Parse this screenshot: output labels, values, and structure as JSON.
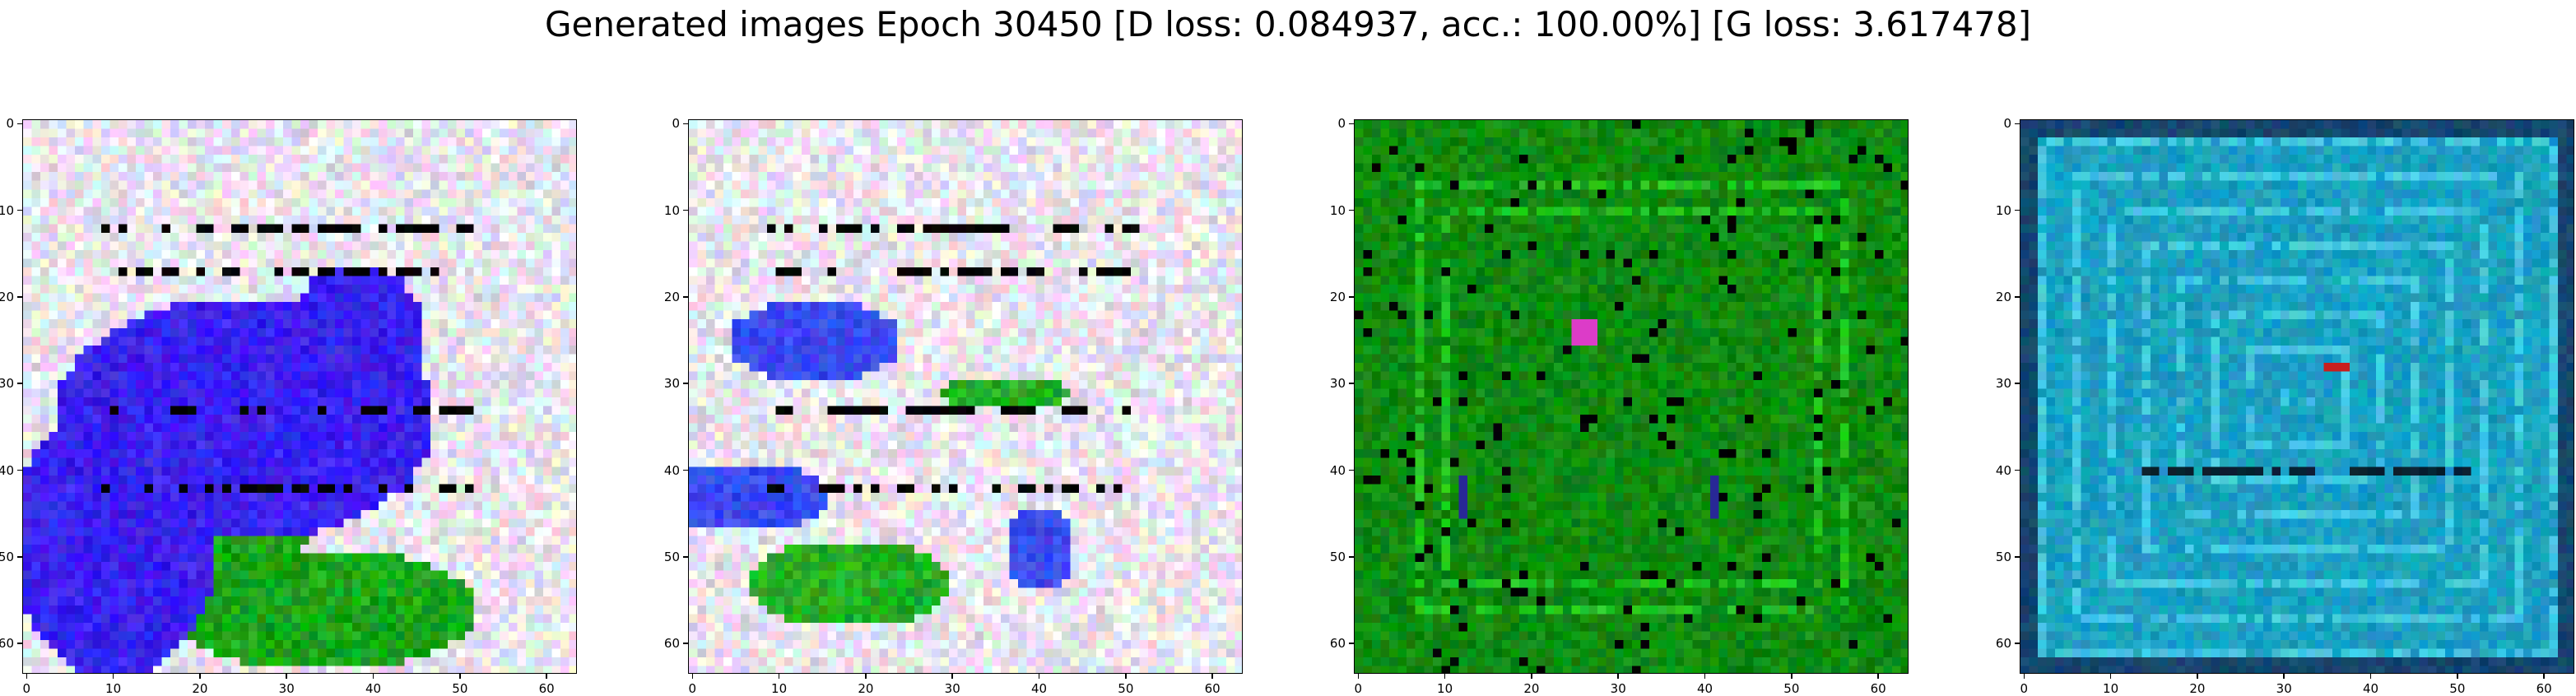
{
  "figure": {
    "title": "Generated images Epoch 30450 [D loss: 0.084937, acc.: 100.00%] [G loss: 3.617478]"
  },
  "chart_data": [
    {
      "type": "heatmap",
      "description_colors": [
        "#e8e4ee",
        "#3a22ee",
        "#1aa61a",
        "#000000"
      ],
      "x": [
        0,
        10,
        20,
        30,
        40,
        50,
        60
      ],
      "y": [
        0,
        10,
        20,
        30,
        40,
        50,
        60
      ],
      "xlim": [
        -0.5,
        63.5
      ],
      "ylim": [
        63.5,
        -0.5
      ],
      "x_tick_labels": [
        "0",
        "10",
        "20",
        "30",
        "40",
        "50",
        "60"
      ],
      "y_tick_labels": [
        "0",
        "10",
        "20",
        "30",
        "40",
        "50",
        "60"
      ],
      "grid": false
    },
    {
      "type": "heatmap",
      "description_colors": [
        "#e8e4ee",
        "#3a4af0",
        "#25b025",
        "#000000"
      ],
      "x": [
        0,
        10,
        20,
        30,
        40,
        50,
        60
      ],
      "y": [
        0,
        10,
        20,
        30,
        40,
        50,
        60
      ],
      "xlim": [
        -0.5,
        63.5
      ],
      "ylim": [
        63.5,
        -0.5
      ],
      "x_tick_labels": [
        "0",
        "10",
        "20",
        "30",
        "40",
        "50",
        "60"
      ],
      "y_tick_labels": [
        "0",
        "10",
        "20",
        "30",
        "40",
        "50",
        "60"
      ],
      "grid": false
    },
    {
      "type": "heatmap",
      "description_colors": [
        "#0f8a0f",
        "#22c522",
        "#000000"
      ],
      "x": [
        0,
        10,
        20,
        30,
        40,
        50,
        60
      ],
      "y": [
        0,
        10,
        20,
        30,
        40,
        50,
        60
      ],
      "xlim": [
        -0.5,
        63.5
      ],
      "ylim": [
        63.5,
        -0.5
      ],
      "x_tick_labels": [
        "0",
        "10",
        "20",
        "30",
        "40",
        "50",
        "60"
      ],
      "y_tick_labels": [
        "0",
        "10",
        "20",
        "30",
        "40",
        "50",
        "60"
      ],
      "grid": false
    },
    {
      "type": "heatmap",
      "description_colors": [
        "#1aa0c0",
        "#45c8e0",
        "#0a2030"
      ],
      "x": [
        0,
        10,
        20,
        30,
        40,
        50,
        60
      ],
      "y": [
        0,
        10,
        20,
        30,
        40,
        50,
        60
      ],
      "xlim": [
        -0.5,
        63.5
      ],
      "ylim": [
        63.5,
        -0.5
      ],
      "x_tick_labels": [
        "0",
        "10",
        "20",
        "30",
        "40",
        "50",
        "60"
      ],
      "y_tick_labels": [
        "0",
        "10",
        "20",
        "30",
        "40",
        "50",
        "60"
      ],
      "grid": false
    }
  ]
}
